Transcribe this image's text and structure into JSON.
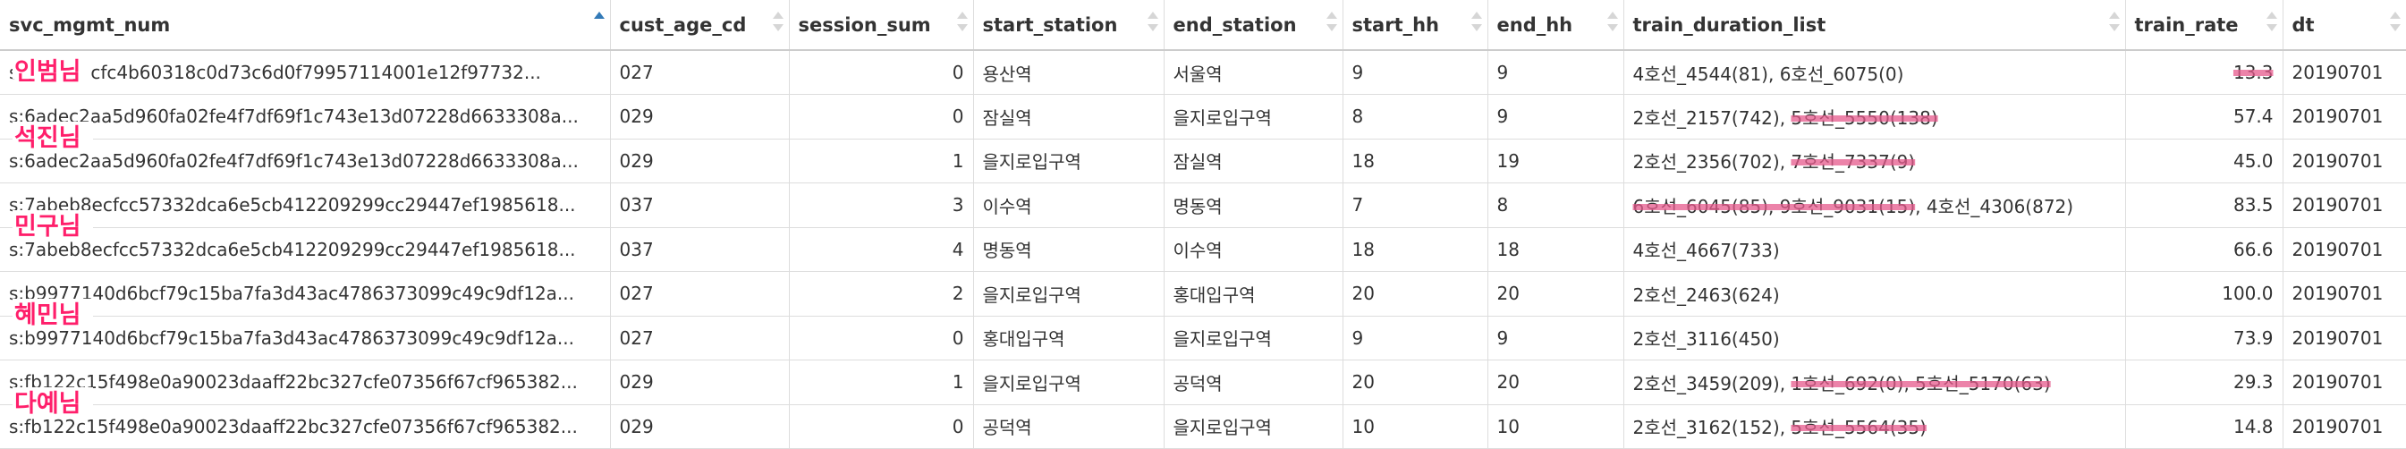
{
  "columns": [
    {
      "key": "svc_mgmt_num",
      "label": "svc_mgmt_num",
      "align": "left"
    },
    {
      "key": "cust_age_cd",
      "label": "cust_age_cd",
      "align": "left"
    },
    {
      "key": "session_sum",
      "label": "session_sum",
      "align": "right"
    },
    {
      "key": "start_station",
      "label": "start_station",
      "align": "left"
    },
    {
      "key": "end_station",
      "label": "end_station",
      "align": "left"
    },
    {
      "key": "start_hh",
      "label": "start_hh",
      "align": "left"
    },
    {
      "key": "end_hh",
      "label": "end_hh",
      "align": "left"
    },
    {
      "key": "train_duration_list",
      "label": "train_duration_list",
      "align": "left"
    },
    {
      "key": "train_rate",
      "label": "train_rate",
      "align": "right"
    },
    {
      "key": "dt",
      "label": "dt",
      "align": "left"
    }
  ],
  "sort": {
    "column": "svc_mgmt_num",
    "direction": "ascending"
  },
  "rows": [
    {
      "svc_mgmt_num": "s:6bc4e1cfc4b60318c0d73c6d0f79957114001e12f97732...",
      "cust_age_cd": "027",
      "session_sum": "0",
      "start_station": "용산역",
      "end_station": "서울역",
      "start_hh": "9",
      "end_hh": "9",
      "train_duration_list": [
        {
          "text": "4호선_4544(81), 6호선_6075(0)",
          "struck": false
        }
      ],
      "train_rate": "13.3",
      "rate_struck": true,
      "dt": "20190701"
    },
    {
      "svc_mgmt_num": "s:6adec2aa5d960fa02fe4f7df69f1c743e13d07228d6633308a...",
      "cust_age_cd": "029",
      "session_sum": "0",
      "start_station": "잠실역",
      "end_station": "을지로입구역",
      "start_hh": "8",
      "end_hh": "9",
      "train_duration_list": [
        {
          "text": "2호선_2157(742), ",
          "struck": false
        },
        {
          "text": "5호선_5550(138)",
          "struck": true
        }
      ],
      "train_rate": "57.4",
      "rate_struck": false,
      "dt": "20190701"
    },
    {
      "svc_mgmt_num": "s:6adec2aa5d960fa02fe4f7df69f1c743e13d07228d6633308a...",
      "cust_age_cd": "029",
      "session_sum": "1",
      "start_station": "을지로입구역",
      "end_station": "잠실역",
      "start_hh": "18",
      "end_hh": "19",
      "train_duration_list": [
        {
          "text": "2호선_2356(702), ",
          "struck": false
        },
        {
          "text": "7호선_7337(9)",
          "struck": true
        }
      ],
      "train_rate": "45.0",
      "rate_struck": false,
      "dt": "20190701"
    },
    {
      "svc_mgmt_num": "s:7abeb8ecfcc57332dca6e5cb412209299cc29447ef1985618...",
      "cust_age_cd": "037",
      "session_sum": "3",
      "start_station": "이수역",
      "end_station": "명동역",
      "start_hh": "7",
      "end_hh": "8",
      "train_duration_list": [
        {
          "text": "6호선_6045(85), 9호선_9031(15)",
          "struck": true
        },
        {
          "text": ", 4호선_4306(872)",
          "struck": false
        }
      ],
      "train_rate": "83.5",
      "rate_struck": false,
      "dt": "20190701"
    },
    {
      "svc_mgmt_num": "s:7abeb8ecfcc57332dca6e5cb412209299cc29447ef1985618...",
      "cust_age_cd": "037",
      "session_sum": "4",
      "start_station": "명동역",
      "end_station": "이수역",
      "start_hh": "18",
      "end_hh": "18",
      "train_duration_list": [
        {
          "text": "4호선_4667(733)",
          "struck": false
        }
      ],
      "train_rate": "66.6",
      "rate_struck": false,
      "dt": "20190701"
    },
    {
      "svc_mgmt_num": "s:b9977140d6bcf79c15ba7fa3d43ac4786373099c49c9df12a...",
      "cust_age_cd": "027",
      "session_sum": "2",
      "start_station": "을지로입구역",
      "end_station": "홍대입구역",
      "start_hh": "20",
      "end_hh": "20",
      "train_duration_list": [
        {
          "text": "2호선_2463(624)",
          "struck": false
        }
      ],
      "train_rate": "100.0",
      "rate_struck": false,
      "dt": "20190701"
    },
    {
      "svc_mgmt_num": "s:b9977140d6bcf79c15ba7fa3d43ac4786373099c49c9df12a...",
      "cust_age_cd": "027",
      "session_sum": "0",
      "start_station": "홍대입구역",
      "end_station": "을지로입구역",
      "start_hh": "9",
      "end_hh": "9",
      "train_duration_list": [
        {
          "text": "2호선_3116(450)",
          "struck": false
        }
      ],
      "train_rate": "73.9",
      "rate_struck": false,
      "dt": "20190701"
    },
    {
      "svc_mgmt_num": "s:fb122c15f498e0a90023daaff22bc327cfe07356f67cf965382...",
      "cust_age_cd": "029",
      "session_sum": "1",
      "start_station": "을지로입구역",
      "end_station": "공덕역",
      "start_hh": "20",
      "end_hh": "20",
      "train_duration_list": [
        {
          "text": "2호선_3459(209), ",
          "struck": false
        },
        {
          "text": "1호선_692(0), 5호선_5170(63)",
          "struck": true
        }
      ],
      "train_rate": "29.3",
      "rate_struck": false,
      "dt": "20190701"
    },
    {
      "svc_mgmt_num": "s:fb122c15f498e0a90023daaff22bc327cfe07356f67cf965382...",
      "cust_age_cd": "029",
      "session_sum": "0",
      "start_station": "공덕역",
      "end_station": "을지로입구역",
      "start_hh": "10",
      "end_hh": "10",
      "train_duration_list": [
        {
          "text": "2호선_3162(152), ",
          "struck": false
        },
        {
          "text": "5호선_5564(35)",
          "struck": true
        }
      ],
      "train_rate": "14.8",
      "rate_struck": false,
      "dt": "20190701"
    }
  ],
  "annotations": [
    {
      "text": "인범님",
      "row": 0
    },
    {
      "text": "석진님",
      "row": 1
    },
    {
      "text": "민구님",
      "row": 3
    },
    {
      "text": "혜민님",
      "row": 5
    },
    {
      "text": "다예님",
      "row": 7
    }
  ],
  "colors": {
    "annotation": "#ff1f6b",
    "strike": "#e65a8c",
    "sort_active": "#337ab7",
    "sort_inactive": "#d6d6d6",
    "border": "#dddddd"
  }
}
